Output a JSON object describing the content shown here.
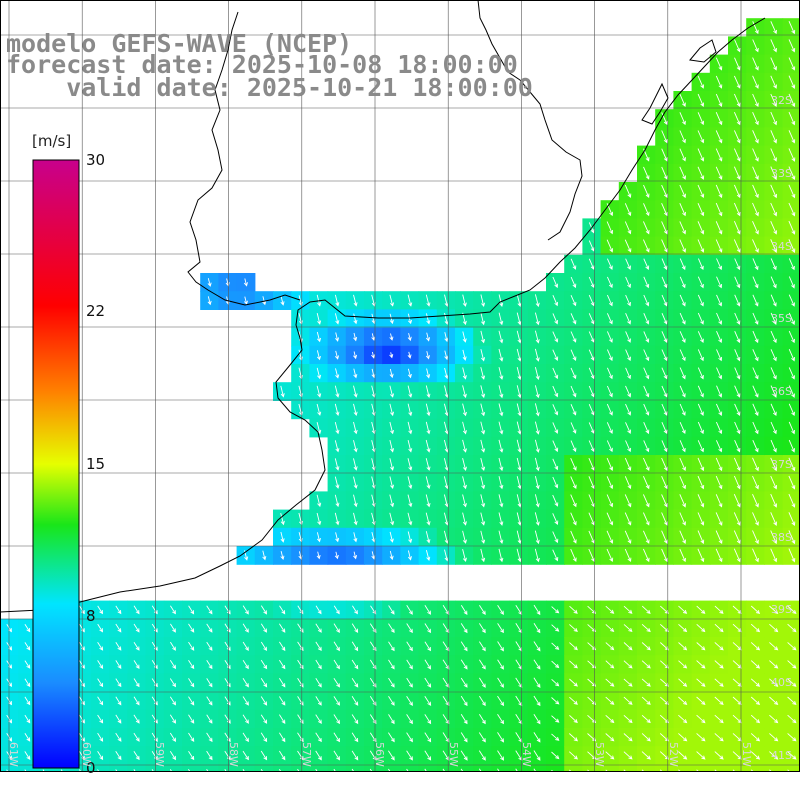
{
  "header": {
    "model_line": "modelo GEFS-WAVE (NCEP)",
    "forecast_line": "forecast date: 2025-10-08 18:00:00",
    "valid_line": "    valid date: 2025-10-21 18:00:00"
  },
  "colorbar": {
    "units": "[m/s]",
    "ticks": [
      "30",
      "22",
      "15",
      "8",
      "0"
    ],
    "tick_values": [
      30,
      22,
      15,
      8,
      0
    ],
    "colors": [
      "#0000ff",
      "#1a8cff",
      "#00e5ff",
      "#19e619",
      "#e6ff00",
      "#ff8000",
      "#ff0000",
      "#c8008c"
    ]
  },
  "map": {
    "lat_labels": [
      "32S",
      "33S",
      "34S",
      "35S",
      "36S",
      "37S",
      "38S",
      "39S",
      "40S",
      "41S"
    ],
    "lon_labels": [
      "61W",
      "60W",
      "59W",
      "58W",
      "57W",
      "56W",
      "55W",
      "54W",
      "53W",
      "52W",
      "51W"
    ],
    "land_color": "#ffffff",
    "coast_color": "#000000",
    "grid_color": "#555555",
    "arrow_color": "#ffffff"
  }
}
